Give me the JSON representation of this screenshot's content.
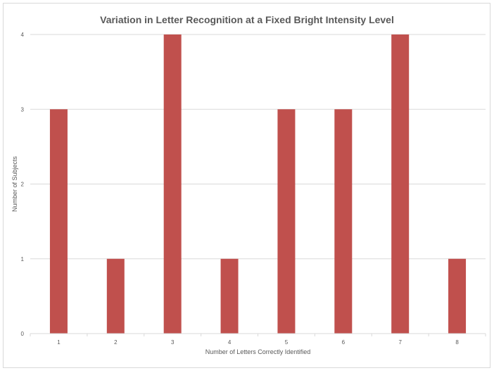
{
  "chart_data": {
    "type": "bar",
    "title": "Variation in Letter Recognition at a Fixed Bright Intensity Level",
    "xlabel": "Number of Letters Correctly Identified",
    "ylabel": "Number of Subjects",
    "categories": [
      "1",
      "2",
      "3",
      "4",
      "5",
      "6",
      "7",
      "8"
    ],
    "values": [
      3,
      1,
      4,
      1,
      3,
      3,
      4,
      1
    ],
    "ylim": [
      0,
      4
    ],
    "yticks": [
      "0",
      "1",
      "2",
      "3",
      "4"
    ],
    "grid": true,
    "legend": "none",
    "bar_color": "#c0504d"
  }
}
